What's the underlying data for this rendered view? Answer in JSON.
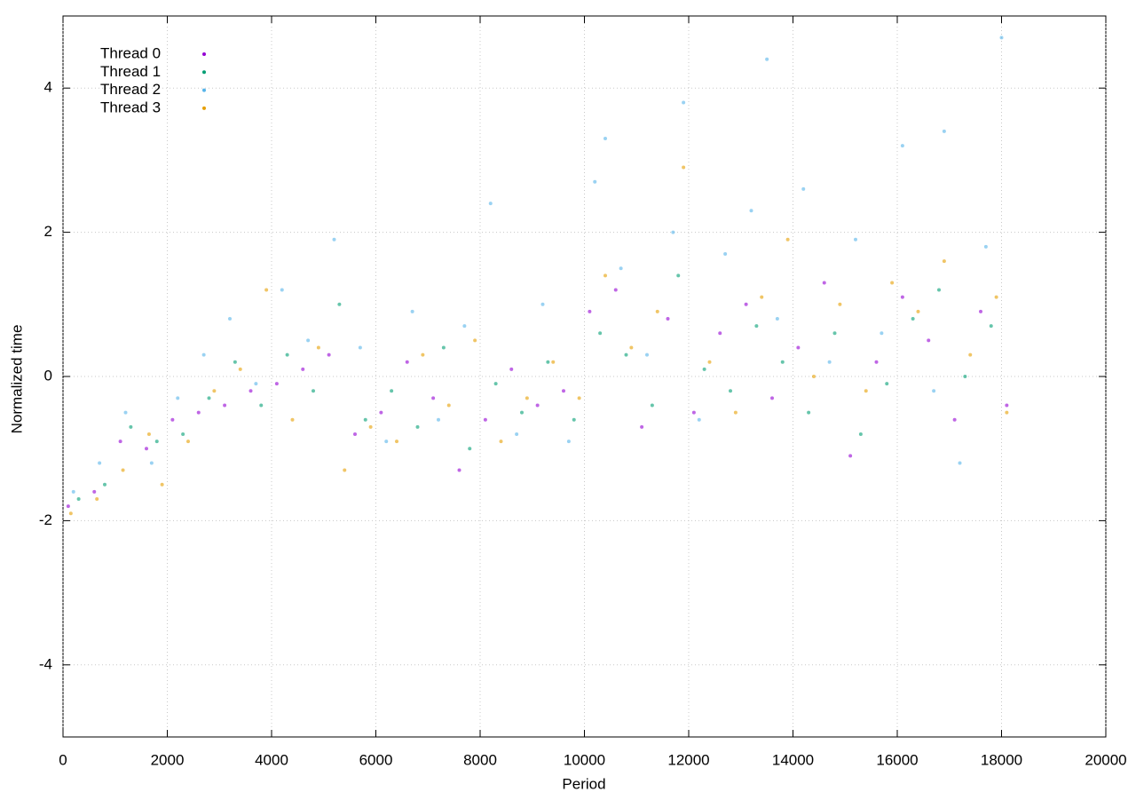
{
  "chart_data": {
    "type": "scatter",
    "x_label": "Period",
    "y_label": "Normalized time",
    "xlim": [
      0,
      20000
    ],
    "ylim": [
      -5,
      5
    ],
    "xticks": [
      0,
      2000,
      4000,
      6000,
      8000,
      10000,
      12000,
      14000,
      16000,
      18000,
      20000
    ],
    "yticks": [
      -4,
      -2,
      0,
      2,
      4
    ],
    "grid": true,
    "legend": "top-left",
    "series": [
      {
        "name": "Thread 0",
        "color": "#9400d3",
        "x": [
          100,
          600,
          1100,
          1600,
          2100,
          2600,
          3100,
          3600,
          4100,
          4600,
          5100,
          5600,
          6100,
          6600,
          7100,
          7600,
          8100,
          8600,
          9100,
          9600,
          10100,
          10600,
          11100,
          11600,
          12100,
          12600,
          13100,
          13600,
          14100,
          14600,
          15100,
          15600,
          16100,
          16600,
          17100,
          17600,
          18100
        ],
        "values": [
          -1.8,
          -1.6,
          -0.9,
          -1.0,
          -0.6,
          -0.5,
          -0.4,
          -0.2,
          -0.1,
          0.1,
          0.3,
          -0.8,
          -0.5,
          0.2,
          -0.3,
          -1.3,
          -0.6,
          0.1,
          -0.4,
          -0.2,
          0.9,
          1.2,
          -0.7,
          0.8,
          -0.5,
          0.6,
          1.0,
          -0.3,
          0.4,
          1.3,
          -1.1,
          0.2,
          1.1,
          0.5,
          -0.6,
          0.9,
          -0.4
        ]
      },
      {
        "name": "Thread 1",
        "color": "#009e73",
        "x": [
          300,
          800,
          1300,
          1800,
          2300,
          2800,
          3300,
          3800,
          4300,
          4800,
          5300,
          5800,
          6300,
          6800,
          7300,
          7800,
          8300,
          8800,
          9300,
          9800,
          10300,
          10800,
          11300,
          11800,
          12300,
          12800,
          13300,
          13800,
          14300,
          14800,
          15300,
          15800,
          16300,
          16800,
          17300,
          17800
        ],
        "values": [
          -1.7,
          -1.5,
          -0.7,
          -0.9,
          -0.8,
          -0.3,
          0.2,
          -0.4,
          0.3,
          -0.2,
          1.0,
          -0.6,
          -0.2,
          -0.7,
          0.4,
          -1.0,
          -0.1,
          -0.5,
          0.2,
          -0.6,
          0.6,
          0.3,
          -0.4,
          1.4,
          0.1,
          -0.2,
          0.7,
          0.2,
          -0.5,
          0.6,
          -0.8,
          -0.1,
          0.8,
          1.2,
          0.0,
          0.7
        ]
      },
      {
        "name": "Thread 2",
        "color": "#56b4e9",
        "x": [
          200,
          700,
          1200,
          1700,
          2200,
          2700,
          3200,
          3700,
          4200,
          4700,
          5200,
          5700,
          6200,
          6700,
          7200,
          7700,
          8200,
          8700,
          9200,
          9700,
          10200,
          10400,
          10700,
          11200,
          11700,
          11900,
          12200,
          12700,
          13200,
          13500,
          13700,
          14200,
          14700,
          15200,
          15700,
          16100,
          16700,
          16900,
          17200,
          17700,
          18000
        ],
        "values": [
          -1.6,
          -1.2,
          -0.5,
          -1.2,
          -0.3,
          0.3,
          0.8,
          -0.1,
          1.2,
          0.5,
          1.9,
          0.4,
          -0.9,
          0.9,
          -0.6,
          0.7,
          2.4,
          -0.8,
          1.0,
          -0.9,
          2.7,
          3.3,
          1.5,
          0.3,
          2.0,
          3.8,
          -0.6,
          1.7,
          2.3,
          4.4,
          0.8,
          2.6,
          0.2,
          1.9,
          0.6,
          3.2,
          -0.2,
          3.4,
          -1.2,
          1.8,
          4.7
        ]
      },
      {
        "name": "Thread 3",
        "color": "#e69f00",
        "x": [
          150,
          650,
          1150,
          1650,
          1900,
          2400,
          2900,
          3400,
          3900,
          4400,
          4900,
          5400,
          5900,
          6400,
          6900,
          7400,
          7900,
          8400,
          8900,
          9400,
          9900,
          10400,
          10900,
          11400,
          11900,
          12400,
          12900,
          13400,
          13900,
          14400,
          14900,
          15400,
          15900,
          16400,
          16900,
          17400,
          17900,
          18100
        ],
        "values": [
          -1.9,
          -1.7,
          -1.3,
          -0.8,
          -1.5,
          -0.9,
          -0.2,
          0.1,
          1.2,
          -0.6,
          0.4,
          -1.3,
          -0.7,
          -0.9,
          0.3,
          -0.4,
          0.5,
          -0.9,
          -0.3,
          0.2,
          -0.3,
          1.4,
          0.4,
          0.9,
          2.9,
          0.2,
          -0.5,
          1.1,
          1.9,
          0.0,
          1.0,
          -0.2,
          1.3,
          0.9,
          1.6,
          0.3,
          1.1,
          -0.5
        ]
      }
    ]
  }
}
